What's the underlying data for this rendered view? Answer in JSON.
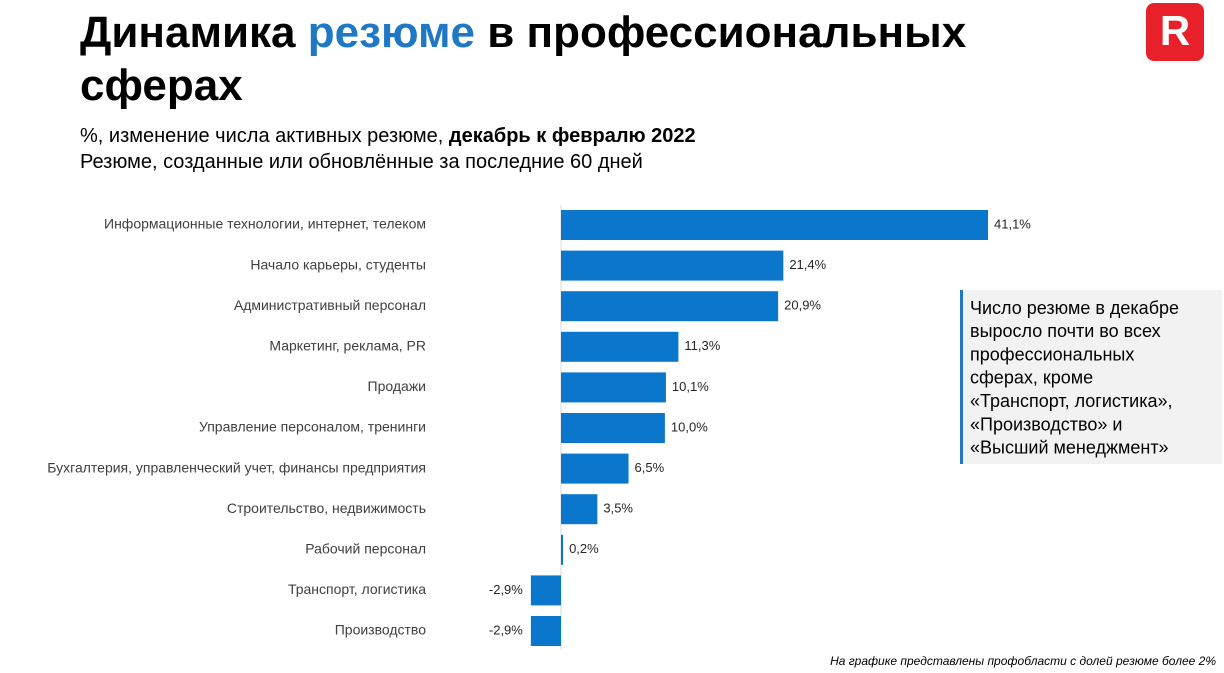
{
  "chart_data": {
    "type": "hbar",
    "title": [
      [
        "Динамика ",
        "резюме",
        " в профессиональных"
      ],
      [
        "сферах"
      ]
    ],
    "title_highlight_color": "#1f78c4",
    "subtitle": [
      [
        "%, изменение числа активных резюме, ",
        "декабрь к февралю 2022"
      ],
      [
        "Резюме, созданные или обновлённые за последние 60 дней"
      ]
    ],
    "categories": [
      "Информационные технологии, интернет, телеком",
      "Начало карьеры, студенты",
      "Административный персонал",
      "Маркетинг, реклама, PR",
      "Продажи",
      "Управление персоналом, тренинги",
      "Бухгалтерия, управленческий учет, финансы предприятия",
      "Строительство, недвижимость",
      "Рабочий персонал",
      "Транспорт, логистика",
      "Производство"
    ],
    "values": [
      41.1,
      21.4,
      20.9,
      11.3,
      10.1,
      10.0,
      6.5,
      3.5,
      0.2,
      -2.9,
      -2.9
    ],
    "value_labels": [
      "41,1%",
      "21,4%",
      "20,9%",
      "11,3%",
      "10,1%",
      "10,0%",
      "6,5%",
      "3,5%",
      "0,2%",
      "-2,9%",
      "-2,9%"
    ],
    "color": "#0a77cc",
    "xlim": [
      -5,
      45
    ],
    "annotation": [
      "Число резюме в декабре",
      "выросло почти во всех",
      "профессиональных",
      "сферах, кроме",
      "«Транспорт, логистика»,",
      "«Производство» и",
      "«Высший менеджмент»"
    ],
    "footnote": "На графике представлены профобласти с долей резюме более 2%",
    "logo": "R"
  }
}
